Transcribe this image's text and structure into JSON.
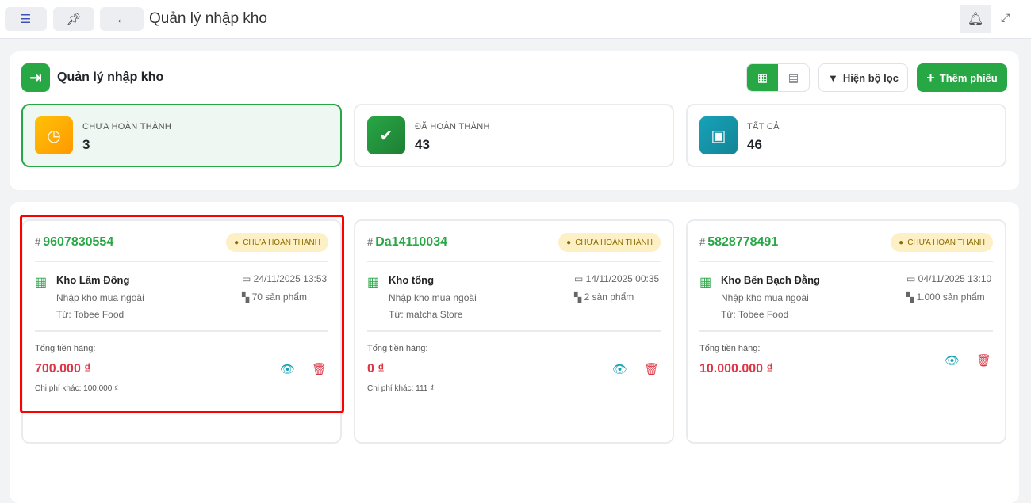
{
  "topbar": {
    "title": "Quản lý nhập kho"
  },
  "header": {
    "title": "Quản lý nhập kho",
    "filter_label": "Hiện bộ lọc",
    "add_label": "Thêm phiếu"
  },
  "stats": [
    {
      "label": "CHƯA HOÀN THÀNH",
      "value": "3",
      "color": "#ffb300"
    },
    {
      "label": "ĐÃ HOÀN THÀNH",
      "value": "43",
      "color": "#28a745"
    },
    {
      "label": "TẤT CẢ",
      "value": "46",
      "color": "#17a2b8"
    }
  ],
  "cards": [
    {
      "id": "9607830554",
      "status": "CHƯA HOÀN THÀNH",
      "warehouse": "Kho Lâm Đồng",
      "type": "Nhập kho mua ngoài",
      "from": "Từ: Tobee Food",
      "datetime": "24/11/2025 13:53",
      "qty": "70 sản phẩm",
      "total_label": "Tổng tiền hàng:",
      "total": "700.000 ₫",
      "other": "Chi phí khác: 100.000 ₫"
    },
    {
      "id": "Da14110034",
      "status": "CHƯA HOÀN THÀNH",
      "warehouse": "Kho tổng",
      "type": "Nhập kho mua ngoài",
      "from": "Từ: matcha Store",
      "datetime": "14/11/2025 00:35",
      "qty": "2 sản phẩm",
      "total_label": "Tổng tiền hàng:",
      "total": "0 ₫",
      "other": "Chi phí khác: 111 ₫"
    },
    {
      "id": "5828778491",
      "status": "CHƯA HOÀN THÀNH",
      "warehouse": "Kho Bến Bạch Đằng",
      "type": "Nhập kho mua ngoài",
      "from": "Từ: Tobee Food",
      "datetime": "04/11/2025 13:10",
      "qty": "1.000 sản phẩm",
      "total_label": "Tổng tiền hàng:",
      "total": "10.000.000 ₫"
    }
  ]
}
